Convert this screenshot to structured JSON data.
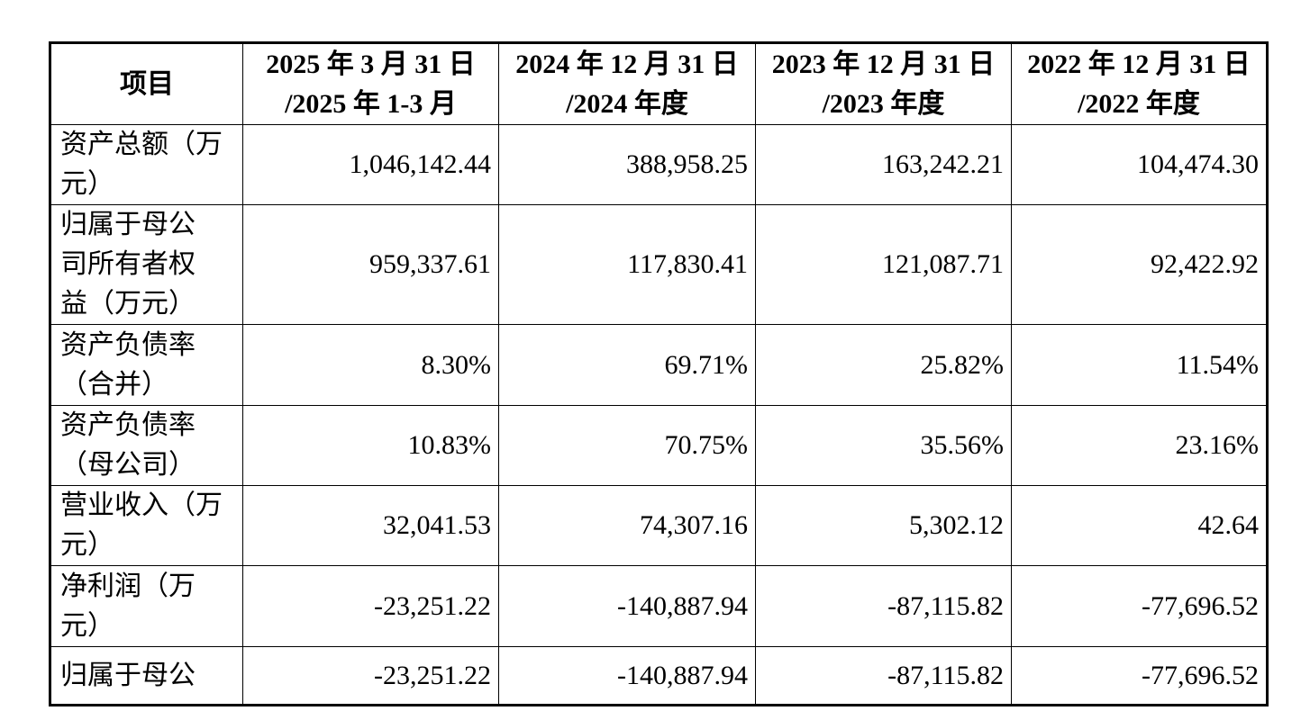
{
  "table": {
    "header": [
      [
        "项目"
      ],
      [
        "2025 年 3 月 31 日",
        "/2025 年 1-3 月"
      ],
      [
        "2024 年 12 月 31 日",
        "/2024 年度"
      ],
      [
        "2023 年 12 月 31 日",
        "/2023 年度"
      ],
      [
        "2022 年 12 月 31 日",
        "/2022 年度"
      ]
    ],
    "rows": [
      {
        "label": [
          "资产总额（万",
          "元）"
        ],
        "cells": [
          "1,046,142.44",
          "388,958.25",
          "163,242.21",
          "104,474.30"
        ]
      },
      {
        "label": [
          "归属于母公",
          "司所有者权",
          "益（万元）"
        ],
        "cells": [
          "959,337.61",
          "117,830.41",
          "121,087.71",
          "92,422.92"
        ]
      },
      {
        "label": [
          "资产负债率",
          "（合并）"
        ],
        "cells": [
          "8.30%",
          "69.71%",
          "25.82%",
          "11.54%"
        ]
      },
      {
        "label": [
          "资产负债率",
          "（母公司）"
        ],
        "cells": [
          "10.83%",
          "70.75%",
          "35.56%",
          "23.16%"
        ]
      },
      {
        "label": [
          "营业收入（万",
          "元）"
        ],
        "cells": [
          "32,041.53",
          "74,307.16",
          "5,302.12",
          "42.64"
        ]
      },
      {
        "label": [
          "净利润（万",
          "元）"
        ],
        "cells": [
          "-23,251.22",
          "-140,887.94",
          "-87,115.82",
          "-77,696.52"
        ]
      },
      {
        "label": [
          "归属于母公"
        ],
        "cells": [
          "-23,251.22",
          "-140,887.94",
          "-87,115.82",
          "-77,696.52"
        ]
      }
    ]
  }
}
